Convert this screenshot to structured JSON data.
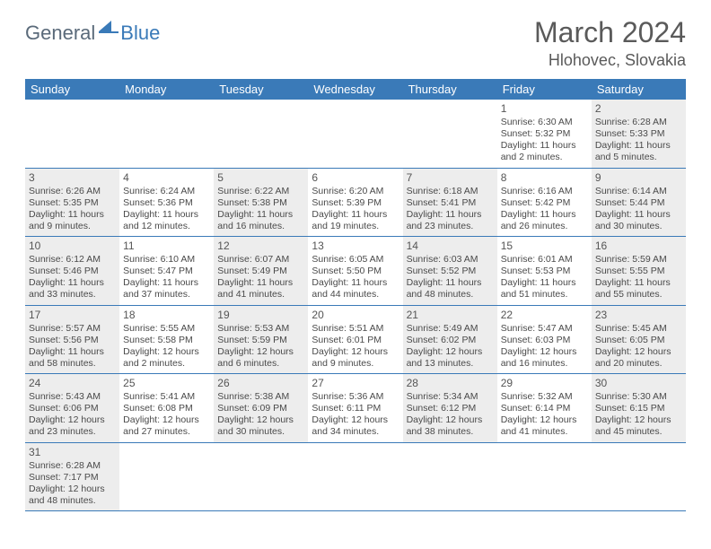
{
  "logo": {
    "text1": "General",
    "text2": "Blue"
  },
  "title": "March 2024",
  "location": "Hlohovec, Slovakia",
  "colors": {
    "header_bg": "#3a7ab8",
    "header_text": "#ffffff",
    "shade_bg": "#ededed",
    "border": "#3a7ab8",
    "text": "#4a4a4a",
    "title_color": "#5a5a5a"
  },
  "day_headers": [
    "Sunday",
    "Monday",
    "Tuesday",
    "Wednesday",
    "Thursday",
    "Friday",
    "Saturday"
  ],
  "weeks": [
    [
      {
        "empty": true
      },
      {
        "empty": true
      },
      {
        "empty": true
      },
      {
        "empty": true
      },
      {
        "empty": true
      },
      {
        "day": "1",
        "shade": false,
        "sunrise": "Sunrise: 6:30 AM",
        "sunset": "Sunset: 5:32 PM",
        "daylight": "Daylight: 11 hours and 2 minutes."
      },
      {
        "day": "2",
        "shade": true,
        "sunrise": "Sunrise: 6:28 AM",
        "sunset": "Sunset: 5:33 PM",
        "daylight": "Daylight: 11 hours and 5 minutes."
      }
    ],
    [
      {
        "day": "3",
        "shade": true,
        "sunrise": "Sunrise: 6:26 AM",
        "sunset": "Sunset: 5:35 PM",
        "daylight": "Daylight: 11 hours and 9 minutes."
      },
      {
        "day": "4",
        "shade": false,
        "sunrise": "Sunrise: 6:24 AM",
        "sunset": "Sunset: 5:36 PM",
        "daylight": "Daylight: 11 hours and 12 minutes."
      },
      {
        "day": "5",
        "shade": true,
        "sunrise": "Sunrise: 6:22 AM",
        "sunset": "Sunset: 5:38 PM",
        "daylight": "Daylight: 11 hours and 16 minutes."
      },
      {
        "day": "6",
        "shade": false,
        "sunrise": "Sunrise: 6:20 AM",
        "sunset": "Sunset: 5:39 PM",
        "daylight": "Daylight: 11 hours and 19 minutes."
      },
      {
        "day": "7",
        "shade": true,
        "sunrise": "Sunrise: 6:18 AM",
        "sunset": "Sunset: 5:41 PM",
        "daylight": "Daylight: 11 hours and 23 minutes."
      },
      {
        "day": "8",
        "shade": false,
        "sunrise": "Sunrise: 6:16 AM",
        "sunset": "Sunset: 5:42 PM",
        "daylight": "Daylight: 11 hours and 26 minutes."
      },
      {
        "day": "9",
        "shade": true,
        "sunrise": "Sunrise: 6:14 AM",
        "sunset": "Sunset: 5:44 PM",
        "daylight": "Daylight: 11 hours and 30 minutes."
      }
    ],
    [
      {
        "day": "10",
        "shade": true,
        "sunrise": "Sunrise: 6:12 AM",
        "sunset": "Sunset: 5:46 PM",
        "daylight": "Daylight: 11 hours and 33 minutes."
      },
      {
        "day": "11",
        "shade": false,
        "sunrise": "Sunrise: 6:10 AM",
        "sunset": "Sunset: 5:47 PM",
        "daylight": "Daylight: 11 hours and 37 minutes."
      },
      {
        "day": "12",
        "shade": true,
        "sunrise": "Sunrise: 6:07 AM",
        "sunset": "Sunset: 5:49 PM",
        "daylight": "Daylight: 11 hours and 41 minutes."
      },
      {
        "day": "13",
        "shade": false,
        "sunrise": "Sunrise: 6:05 AM",
        "sunset": "Sunset: 5:50 PM",
        "daylight": "Daylight: 11 hours and 44 minutes."
      },
      {
        "day": "14",
        "shade": true,
        "sunrise": "Sunrise: 6:03 AM",
        "sunset": "Sunset: 5:52 PM",
        "daylight": "Daylight: 11 hours and 48 minutes."
      },
      {
        "day": "15",
        "shade": false,
        "sunrise": "Sunrise: 6:01 AM",
        "sunset": "Sunset: 5:53 PM",
        "daylight": "Daylight: 11 hours and 51 minutes."
      },
      {
        "day": "16",
        "shade": true,
        "sunrise": "Sunrise: 5:59 AM",
        "sunset": "Sunset: 5:55 PM",
        "daylight": "Daylight: 11 hours and 55 minutes."
      }
    ],
    [
      {
        "day": "17",
        "shade": true,
        "sunrise": "Sunrise: 5:57 AM",
        "sunset": "Sunset: 5:56 PM",
        "daylight": "Daylight: 11 hours and 58 minutes."
      },
      {
        "day": "18",
        "shade": false,
        "sunrise": "Sunrise: 5:55 AM",
        "sunset": "Sunset: 5:58 PM",
        "daylight": "Daylight: 12 hours and 2 minutes."
      },
      {
        "day": "19",
        "shade": true,
        "sunrise": "Sunrise: 5:53 AM",
        "sunset": "Sunset: 5:59 PM",
        "daylight": "Daylight: 12 hours and 6 minutes."
      },
      {
        "day": "20",
        "shade": false,
        "sunrise": "Sunrise: 5:51 AM",
        "sunset": "Sunset: 6:01 PM",
        "daylight": "Daylight: 12 hours and 9 minutes."
      },
      {
        "day": "21",
        "shade": true,
        "sunrise": "Sunrise: 5:49 AM",
        "sunset": "Sunset: 6:02 PM",
        "daylight": "Daylight: 12 hours and 13 minutes."
      },
      {
        "day": "22",
        "shade": false,
        "sunrise": "Sunrise: 5:47 AM",
        "sunset": "Sunset: 6:03 PM",
        "daylight": "Daylight: 12 hours and 16 minutes."
      },
      {
        "day": "23",
        "shade": true,
        "sunrise": "Sunrise: 5:45 AM",
        "sunset": "Sunset: 6:05 PM",
        "daylight": "Daylight: 12 hours and 20 minutes."
      }
    ],
    [
      {
        "day": "24",
        "shade": true,
        "sunrise": "Sunrise: 5:43 AM",
        "sunset": "Sunset: 6:06 PM",
        "daylight": "Daylight: 12 hours and 23 minutes."
      },
      {
        "day": "25",
        "shade": false,
        "sunrise": "Sunrise: 5:41 AM",
        "sunset": "Sunset: 6:08 PM",
        "daylight": "Daylight: 12 hours and 27 minutes."
      },
      {
        "day": "26",
        "shade": true,
        "sunrise": "Sunrise: 5:38 AM",
        "sunset": "Sunset: 6:09 PM",
        "daylight": "Daylight: 12 hours and 30 minutes."
      },
      {
        "day": "27",
        "shade": false,
        "sunrise": "Sunrise: 5:36 AM",
        "sunset": "Sunset: 6:11 PM",
        "daylight": "Daylight: 12 hours and 34 minutes."
      },
      {
        "day": "28",
        "shade": true,
        "sunrise": "Sunrise: 5:34 AM",
        "sunset": "Sunset: 6:12 PM",
        "daylight": "Daylight: 12 hours and 38 minutes."
      },
      {
        "day": "29",
        "shade": false,
        "sunrise": "Sunrise: 5:32 AM",
        "sunset": "Sunset: 6:14 PM",
        "daylight": "Daylight: 12 hours and 41 minutes."
      },
      {
        "day": "30",
        "shade": true,
        "sunrise": "Sunrise: 5:30 AM",
        "sunset": "Sunset: 6:15 PM",
        "daylight": "Daylight: 12 hours and 45 minutes."
      }
    ],
    [
      {
        "day": "31",
        "shade": true,
        "sunrise": "Sunrise: 6:28 AM",
        "sunset": "Sunset: 7:17 PM",
        "daylight": "Daylight: 12 hours and 48 minutes."
      },
      {
        "empty": true
      },
      {
        "empty": true
      },
      {
        "empty": true
      },
      {
        "empty": true
      },
      {
        "empty": true
      },
      {
        "empty": true
      }
    ]
  ]
}
